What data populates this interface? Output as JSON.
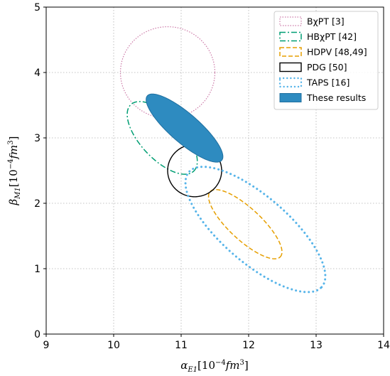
{
  "chart_data": {
    "type": "scatter",
    "title": "",
    "xlabel": "α_E1[10^-4 fm^3]",
    "ylabel": "β_M1[10^-4 fm^3]",
    "xlabel_parts": {
      "base": "α",
      "sub": "E1",
      "bracket_open": "[10",
      "sup": "−4",
      "unit": "fm",
      "unit_sup": "3",
      "bracket_close": "]"
    },
    "ylabel_parts": {
      "base": "β",
      "sub": "M1",
      "bracket_open": "[10",
      "sup": "−4",
      "unit": "fm",
      "unit_sup": "3",
      "bracket_close": "]"
    },
    "xlim": [
      9,
      14
    ],
    "ylim": [
      0,
      5
    ],
    "xticks": [
      "9",
      "10",
      "11",
      "12",
      "13",
      "14"
    ],
    "yticks": [
      "0",
      "1",
      "2",
      "3",
      "4",
      "5"
    ],
    "grid": true,
    "legend_position": "top-right",
    "series": [
      {
        "name": "BχPT [3]",
        "shape": "ellipse",
        "cx": 10.8,
        "cy": 4.0,
        "rx": 0.7,
        "ry": 0.7,
        "angle_deg": 0,
        "style": "dotted",
        "color": "#cc79a7",
        "filled": false
      },
      {
        "name": "HBχPT [42]",
        "shape": "ellipse",
        "cx": 10.72,
        "cy": 3.0,
        "rx": 0.69,
        "ry": 0.32,
        "angle_deg": -48,
        "style": "dashdot",
        "color": "#009e73",
        "filled": false
      },
      {
        "name": "HDPV [48,49]",
        "shape": "ellipse",
        "cx": 11.95,
        "cy": 1.68,
        "rx": 0.72,
        "ry": 0.24,
        "angle_deg": -44,
        "style": "dashed",
        "color": "#e69f00",
        "filled": false
      },
      {
        "name": "PDG [50]",
        "shape": "ellipse",
        "cx": 11.2,
        "cy": 2.5,
        "rx": 0.4,
        "ry": 0.4,
        "angle_deg": 0,
        "style": "solid",
        "color": "#000000",
        "filled": false
      },
      {
        "name": "TAPS [16]",
        "shape": "ellipse",
        "cx": 12.1,
        "cy": 1.6,
        "rx": 1.32,
        "ry": 0.5,
        "angle_deg": -42,
        "style": "dotted-round",
        "color": "#56b4e9",
        "filled": false
      },
      {
        "name": "These results",
        "shape": "ellipse",
        "cx": 11.05,
        "cy": 3.15,
        "rx": 0.74,
        "ry": 0.22,
        "angle_deg": -42,
        "style": "filled",
        "color": "#2e8bc0",
        "filled": true
      }
    ]
  }
}
